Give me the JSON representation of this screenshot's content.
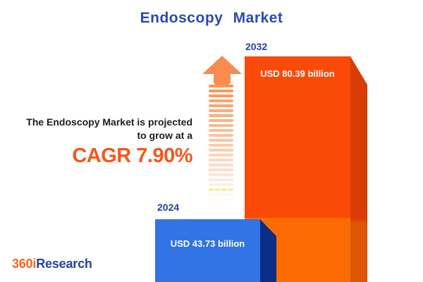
{
  "title": "Endoscopy Market",
  "projection": {
    "line1": "The Endoscopy Market is projected",
    "line2": "to grow at a",
    "cagr": "CAGR 7.90%"
  },
  "bars": [
    {
      "year": "2024",
      "value_label": "USD 43.73 billion"
    },
    {
      "year": "2032",
      "value_label": "USD 80.39 billion"
    }
  ],
  "branding": {
    "logo_orange": "360i",
    "logo_blue": "Research"
  },
  "icons": {
    "growth_arrow": "up-arrow-fading-stripes"
  },
  "colors": {
    "title_blue": "#2b4aad",
    "year_label_blue": "#24449c",
    "body_text": "#1d1d1d",
    "cagr_orange": "#f4571c",
    "bar_2032_front_top": "#fa4a07",
    "bar_2032_front_bottom": "#fc6b03",
    "bar_2032_side_top": "#d83d05",
    "bar_2032_side_bottom": "#de5502",
    "bar_2024_front": "#3273e6",
    "bar_2024_side": "#0b2d85",
    "arrow_orange": "#f78b52",
    "logo_orange": "#f26522"
  },
  "chart_data": {
    "type": "bar",
    "title": "Endoscopy Market",
    "categories": [
      "2024",
      "2032"
    ],
    "values": [
      43.73,
      80.39
    ],
    "unit": "USD billion",
    "value_labels": [
      "USD 43.73 billion",
      "USD 80.39 billion"
    ],
    "cagr_percent": 7.9,
    "annotation": "The Endoscopy Market is projected to grow at a CAGR 7.90%",
    "legend": "none",
    "grid": false,
    "bar_colors": {
      "2024": "#3273e6",
      "2032": "#fa4a07"
    },
    "style": "3d-extruded-infographic"
  }
}
